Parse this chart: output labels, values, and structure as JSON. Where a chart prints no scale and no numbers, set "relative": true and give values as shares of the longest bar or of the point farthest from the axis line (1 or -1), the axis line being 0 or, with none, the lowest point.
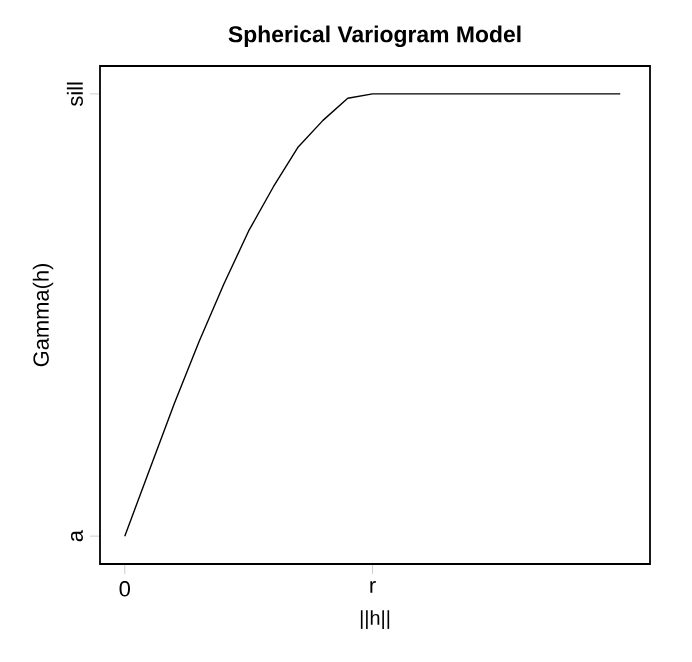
{
  "chart_data": {
    "type": "line",
    "title": "Spherical Variogram Model",
    "xlabel": "||h||",
    "ylabel": "Gamma(h)",
    "relative": true,
    "categories": [
      "0",
      null,
      null,
      null,
      null,
      null,
      null,
      null,
      null,
      null,
      "r",
      null,
      null,
      null,
      null,
      null,
      null,
      null,
      null,
      null,
      null
    ],
    "series": [
      {
        "color": "#000000",
        "values": [
          0,
          0.15,
          0.3,
          0.44,
          0.57,
          0.69,
          0.79,
          0.88,
          0.94,
          0.99,
          1.0,
          1.0,
          1.0,
          1.0,
          1.0,
          1.0,
          1.0,
          1.0,
          1.0,
          1.0,
          1.0
        ]
      }
    ],
    "annotations": [
      "a",
      "sill"
    ],
    "grid": false,
    "marker": "none",
    "line_style": "solid"
  }
}
